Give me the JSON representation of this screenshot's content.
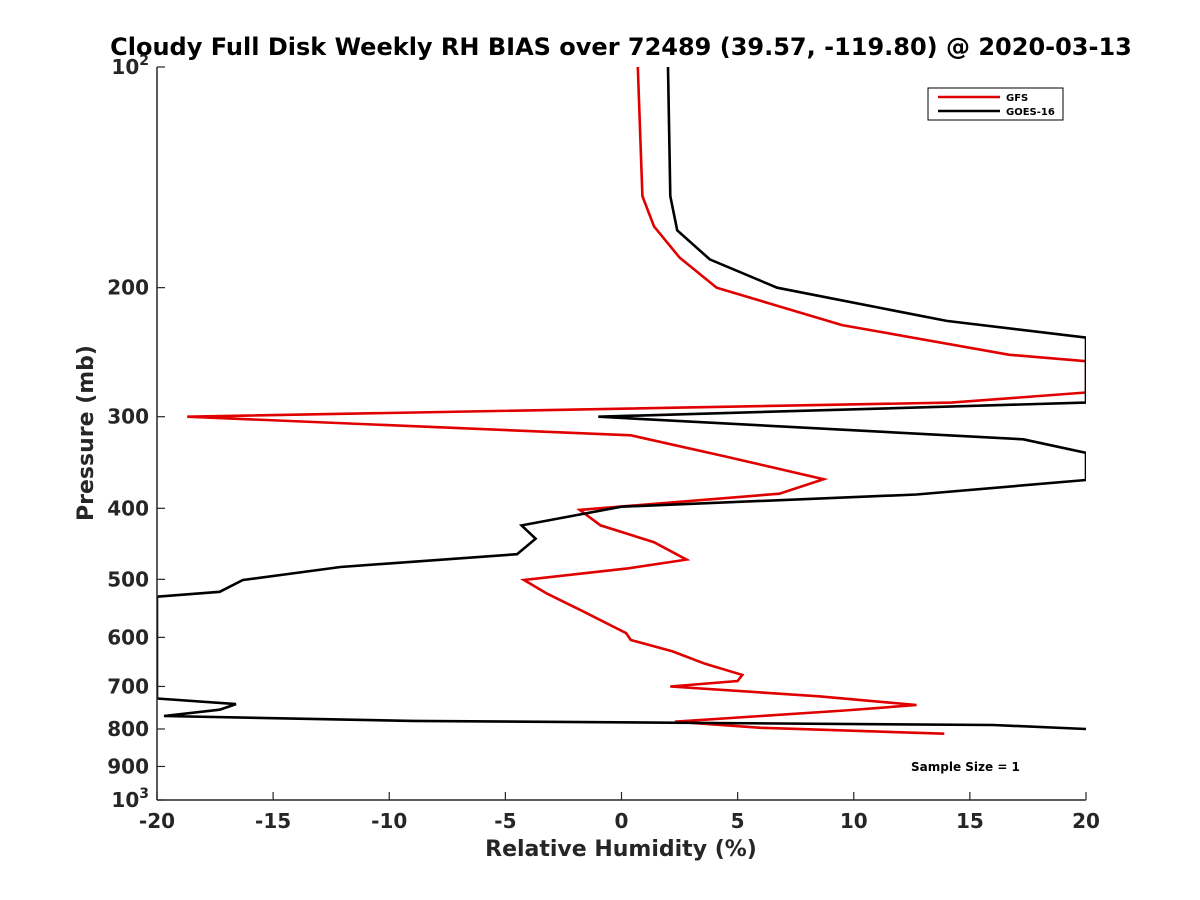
{
  "chart_data": {
    "type": "line",
    "title": "Cloudy Full Disk Weekly RH BIAS over 72489 (39.57, -119.80) @ 2020-03-13",
    "xlabel": "Relative Humidity (%)",
    "ylabel": "Pressure (mb)",
    "xlim": [
      -20,
      20
    ],
    "ylim": [
      100,
      1000
    ],
    "y_scale": "log",
    "y_reversed": true,
    "grid": false,
    "legend_position": "top-right",
    "x_ticks": [
      "-20",
      "-15",
      "-10",
      "-5",
      "0",
      "5",
      "10",
      "15",
      "20"
    ],
    "y_ticks": [
      {
        "value": 100,
        "label": "10",
        "sup": "2"
      },
      {
        "value": 200,
        "label": "200"
      },
      {
        "value": 300,
        "label": "300"
      },
      {
        "value": 400,
        "label": "400"
      },
      {
        "value": 500,
        "label": "500"
      },
      {
        "value": 600,
        "label": "600"
      },
      {
        "value": 700,
        "label": "700"
      },
      {
        "value": 800,
        "label": "800"
      },
      {
        "value": 900,
        "label": "900"
      },
      {
        "value": 1000,
        "label": "10",
        "sup": "3"
      }
    ],
    "series": [
      {
        "name": "GFS",
        "color": "#e00000",
        "points": [
          {
            "x": 0.7,
            "y": 100
          },
          {
            "x": 0.9,
            "y": 150
          },
          {
            "x": 1.4,
            "y": 165
          },
          {
            "x": 2.5,
            "y": 182
          },
          {
            "x": 4.1,
            "y": 200
          },
          {
            "x": 9.5,
            "y": 225
          },
          {
            "x": 16.7,
            "y": 247
          },
          {
            "x": 20.0,
            "y": 252
          },
          {
            "x": 20.0,
            "y": 278
          },
          {
            "x": 14.2,
            "y": 287
          },
          {
            "x": -18.7,
            "y": 300
          },
          {
            "x": 0.4,
            "y": 318
          },
          {
            "x": 4.5,
            "y": 340
          },
          {
            "x": 8.7,
            "y": 365
          },
          {
            "x": 6.8,
            "y": 382
          },
          {
            "x": -1.8,
            "y": 402
          },
          {
            "x": -0.9,
            "y": 422
          },
          {
            "x": 1.4,
            "y": 445
          },
          {
            "x": 2.8,
            "y": 470
          },
          {
            "x": 0.3,
            "y": 483
          },
          {
            "x": -4.2,
            "y": 501
          },
          {
            "x": -3.2,
            "y": 523
          },
          {
            "x": -1.7,
            "y": 552
          },
          {
            "x": 0.2,
            "y": 592
          },
          {
            "x": 0.4,
            "y": 605
          },
          {
            "x": 2.2,
            "y": 627
          },
          {
            "x": 3.6,
            "y": 652
          },
          {
            "x": 5.2,
            "y": 675
          },
          {
            "x": 5.0,
            "y": 688
          },
          {
            "x": 2.1,
            "y": 700
          },
          {
            "x": 8.5,
            "y": 722
          },
          {
            "x": 12.7,
            "y": 742
          },
          {
            "x": 9.6,
            "y": 755
          },
          {
            "x": 2.3,
            "y": 782
          },
          {
            "x": 6.0,
            "y": 797
          },
          {
            "x": 13.9,
            "y": 812
          }
        ]
      },
      {
        "name": "GOES-16",
        "color": "#000000",
        "points": [
          {
            "x": 2.0,
            "y": 100
          },
          {
            "x": 2.1,
            "y": 150
          },
          {
            "x": 2.4,
            "y": 167
          },
          {
            "x": 3.8,
            "y": 183
          },
          {
            "x": 6.7,
            "y": 200
          },
          {
            "x": 14.0,
            "y": 222
          },
          {
            "x": 20.0,
            "y": 234
          },
          {
            "x": 20.0,
            "y": 287
          },
          {
            "x": -1.0,
            "y": 300
          },
          {
            "x": 17.3,
            "y": 322
          },
          {
            "x": 20.0,
            "y": 336
          },
          {
            "x": 20.0,
            "y": 366
          },
          {
            "x": 12.7,
            "y": 383
          },
          {
            "x": 0.0,
            "y": 398
          },
          {
            "x": -4.3,
            "y": 422
          },
          {
            "x": -3.7,
            "y": 440
          },
          {
            "x": -4.5,
            "y": 462
          },
          {
            "x": -12.1,
            "y": 481
          },
          {
            "x": -16.3,
            "y": 501
          },
          {
            "x": -17.3,
            "y": 520
          },
          {
            "x": -20.0,
            "y": 528
          },
          {
            "x": -20.0,
            "y": 727
          },
          {
            "x": -16.6,
            "y": 740
          },
          {
            "x": -17.3,
            "y": 753
          },
          {
            "x": -19.7,
            "y": 768
          },
          {
            "x": -9.0,
            "y": 780
          },
          {
            "x": 16.0,
            "y": 790
          },
          {
            "x": 20.0,
            "y": 800
          }
        ]
      }
    ],
    "annotations": [
      "Sample Size = 1"
    ]
  }
}
